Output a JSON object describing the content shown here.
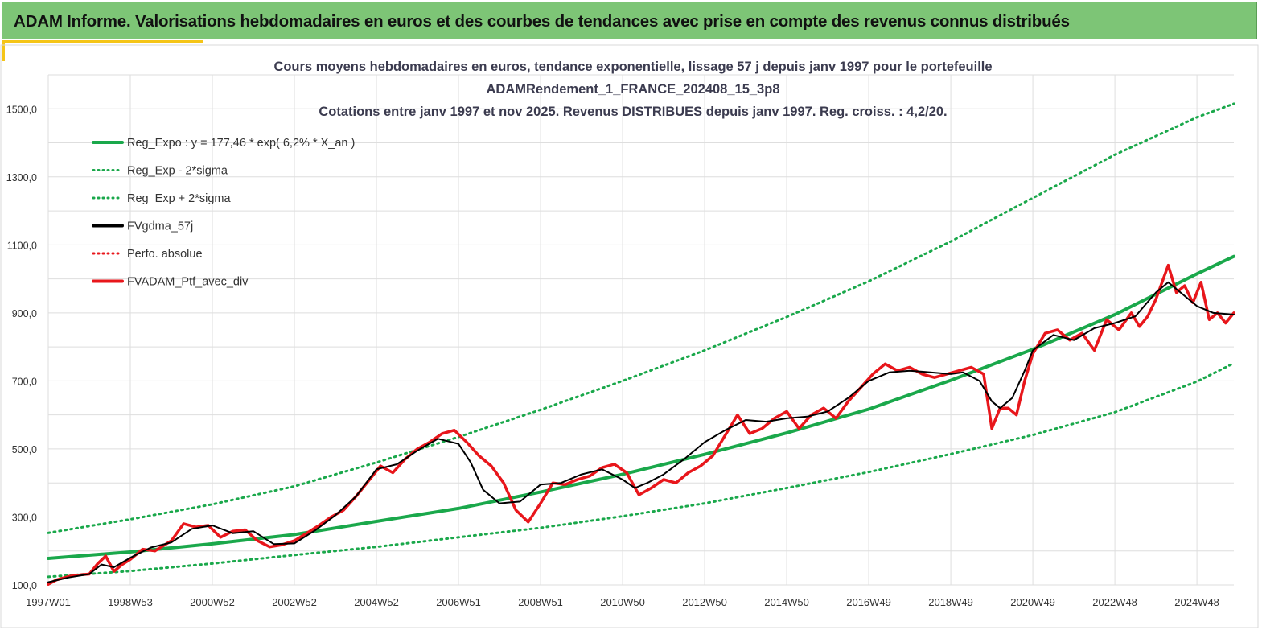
{
  "banner": {
    "title": "ADAM Informe. Valorisations hebdomadaires en euros et des courbes de tendances avec prise en compte des revenus connus distribués"
  },
  "colors": {
    "banner_bg": "#7dc576",
    "trend": "#1aa84b",
    "gdma": "#000000",
    "perf": "#e8161b",
    "grid": "#dedede"
  },
  "chart_data": {
    "type": "line",
    "title_lines": [
      "Cours moyens hebdomadaires  en euros, tendance exponentielle, lissage 57 j depuis janv 1997 pour le portefeuille",
      "ADAMRendement_1_FRANCE_202408_15_3p8",
      "Cotations entre janv 1997 et nov 2025. Revenus DISTRIBUES depuis janv 1997. Reg. croiss. : 4,2/20."
    ],
    "xlabel": "",
    "ylabel": "",
    "x_range": [
      1997.0,
      2025.9
    ],
    "ylim": [
      100,
      1600
    ],
    "y_ticks": [
      100,
      300,
      500,
      700,
      900,
      1100,
      1300,
      1500
    ],
    "y_tick_labels": [
      "100,0",
      "300,0",
      "500,0",
      "700,0",
      "900,0",
      "1100,0",
      "1300,0",
      "1500,0"
    ],
    "x_ticks": [
      1997.0,
      1999.0,
      2001.0,
      2003.0,
      2005.0,
      2007.0,
      2009.0,
      2011.0,
      2013.0,
      2015.0,
      2017.0,
      2019.0,
      2021.0,
      2023.0,
      2025.0
    ],
    "x_tick_labels": [
      "1997W01",
      "1998W53",
      "2000W52",
      "2002W52",
      "2004W52",
      "2006W51",
      "2008W51",
      "2010W50",
      "2012W50",
      "2014W50",
      "2016W49",
      "2018W49",
      "2020W49",
      "2022W48",
      "2024W48"
    ],
    "legend": [
      {
        "label": "Reg_Expo : y = 177,46 * exp( 6,2% *  X_an )",
        "style": "solid",
        "color": "#1aa84b"
      },
      {
        "label": "Reg_Exp - 2*sigma",
        "style": "dotted",
        "color": "#1aa84b"
      },
      {
        "label": "Reg_Exp + 2*sigma",
        "style": "dotted",
        "color": "#1aa84b"
      },
      {
        "label": "FVgdma_57j",
        "style": "solid",
        "color": "#000000"
      },
      {
        "label": "Perfo. absolue",
        "style": "dotted",
        "color": "#e8161b"
      },
      {
        "label": "FVADAM_Ptf_avec_div",
        "style": "solid",
        "color": "#e8161b"
      }
    ],
    "series": [
      {
        "name": "Reg_Expo",
        "x": [
          1997.0,
          1999.0,
          2001.0,
          2003.0,
          2005.0,
          2007.0,
          2009.0,
          2011.0,
          2013.0,
          2015.0,
          2017.0,
          2019.0,
          2021.0,
          2023.0,
          2025.0,
          2025.9
        ],
        "values": [
          178,
          197,
          221,
          248,
          287,
          325,
          373,
          425,
          484,
          547,
          617,
          702,
          793,
          895,
          1015,
          1066
        ]
      },
      {
        "name": "Reg_Exp - 2*sigma",
        "x": [
          1997.0,
          1999.0,
          2001.0,
          2003.0,
          2005.0,
          2007.0,
          2009.0,
          2011.0,
          2013.0,
          2015.0,
          2017.0,
          2019.0,
          2021.0,
          2023.0,
          2025.0,
          2025.9
        ],
        "values": [
          124,
          141,
          163,
          188,
          212,
          240,
          268,
          302,
          340,
          385,
          432,
          485,
          541,
          608,
          698,
          752
        ]
      },
      {
        "name": "Reg_Exp + 2*sigma",
        "x": [
          1997.0,
          1999.0,
          2001.0,
          2003.0,
          2005.0,
          2007.0,
          2009.0,
          2011.0,
          2013.0,
          2015.0,
          2017.0,
          2019.0,
          2021.0,
          2023.0,
          2025.0,
          2025.9
        ],
        "values": [
          253,
          293,
          337,
          390,
          460,
          535,
          615,
          700,
          790,
          888,
          993,
          1110,
          1238,
          1365,
          1475,
          1515
        ]
      },
      {
        "name": "FVgdma_57j",
        "x": [
          1997.0,
          1997.5,
          1998.0,
          1998.3,
          1998.6,
          1999.0,
          1999.5,
          2000.0,
          2000.5,
          2001.0,
          2001.5,
          2002.0,
          2002.5,
          2003.0,
          2003.5,
          2004.0,
          2004.5,
          2005.0,
          2005.5,
          2006.0,
          2006.5,
          2007.0,
          2007.3,
          2007.6,
          2008.0,
          2008.5,
          2009.0,
          2009.5,
          2010.0,
          2010.5,
          2011.0,
          2011.3,
          2011.6,
          2012.0,
          2012.5,
          2013.0,
          2013.5,
          2014.0,
          2014.5,
          2015.0,
          2015.5,
          2016.0,
          2016.5,
          2017.0,
          2017.5,
          2018.0,
          2018.5,
          2019.0,
          2019.3,
          2019.7,
          2020.0,
          2020.2,
          2020.5,
          2020.8,
          2021.0,
          2021.5,
          2022.0,
          2022.5,
          2023.0,
          2023.5,
          2024.0,
          2024.3,
          2024.6,
          2025.0,
          2025.4,
          2025.9
        ],
        "values": [
          108,
          122,
          132,
          160,
          152,
          180,
          210,
          225,
          265,
          275,
          252,
          258,
          220,
          222,
          260,
          305,
          360,
          440,
          455,
          495,
          530,
          515,
          460,
          380,
          340,
          345,
          395,
          400,
          425,
          440,
          410,
          385,
          400,
          425,
          470,
          520,
          555,
          585,
          580,
          590,
          595,
          610,
          650,
          700,
          725,
          730,
          725,
          720,
          725,
          700,
          640,
          620,
          650,
          730,
          790,
          835,
          820,
          855,
          870,
          890,
          960,
          990,
          960,
          920,
          900,
          895
        ]
      },
      {
        "name": "FVADAM_Ptf_avec_div",
        "x": [
          1997.0,
          1997.2,
          1997.5,
          1997.8,
          1998.0,
          1998.2,
          1998.4,
          1998.6,
          1998.8,
          1999.0,
          1999.3,
          1999.6,
          1999.8,
          2000.0,
          2000.3,
          2000.6,
          2000.9,
          2001.2,
          2001.5,
          2001.8,
          2002.1,
          2002.4,
          2002.7,
          2003.0,
          2003.3,
          2003.6,
          2003.9,
          2004.2,
          2004.5,
          2004.8,
          2005.1,
          2005.4,
          2005.7,
          2006.0,
          2006.3,
          2006.6,
          2006.9,
          2007.2,
          2007.5,
          2007.8,
          2008.1,
          2008.4,
          2008.7,
          2009.0,
          2009.3,
          2009.6,
          2009.9,
          2010.2,
          2010.5,
          2010.8,
          2011.1,
          2011.4,
          2011.7,
          2012.0,
          2012.3,
          2012.6,
          2012.9,
          2013.2,
          2013.5,
          2013.8,
          2014.1,
          2014.4,
          2014.7,
          2015.0,
          2015.3,
          2015.6,
          2015.9,
          2016.2,
          2016.5,
          2016.8,
          2017.1,
          2017.4,
          2017.7,
          2018.0,
          2018.3,
          2018.6,
          2018.9,
          2019.2,
          2019.5,
          2019.8,
          2020.0,
          2020.2,
          2020.4,
          2020.6,
          2020.8,
          2021.0,
          2021.3,
          2021.6,
          2021.9,
          2022.2,
          2022.5,
          2022.8,
          2023.1,
          2023.4,
          2023.6,
          2023.8,
          2024.0,
          2024.3,
          2024.5,
          2024.7,
          2024.9,
          2025.1,
          2025.3,
          2025.5,
          2025.7,
          2025.9
        ],
        "values": [
          102,
          115,
          125,
          130,
          132,
          162,
          185,
          140,
          160,
          175,
          205,
          200,
          215,
          230,
          280,
          270,
          275,
          240,
          258,
          262,
          230,
          212,
          218,
          230,
          252,
          275,
          300,
          320,
          360,
          405,
          450,
          430,
          470,
          500,
          520,
          545,
          555,
          520,
          480,
          450,
          400,
          320,
          285,
          340,
          400,
          395,
          410,
          420,
          445,
          455,
          430,
          365,
          385,
          410,
          400,
          430,
          450,
          480,
          540,
          600,
          545,
          560,
          590,
          610,
          560,
          600,
          620,
          590,
          640,
          680,
          720,
          750,
          730,
          740,
          720,
          710,
          720,
          730,
          740,
          720,
          560,
          620,
          620,
          600,
          700,
          780,
          840,
          850,
          820,
          840,
          790,
          880,
          850,
          900,
          860,
          890,
          940,
          1040,
          960,
          980,
          930,
          990,
          880,
          900,
          870,
          900
        ]
      }
    ]
  }
}
